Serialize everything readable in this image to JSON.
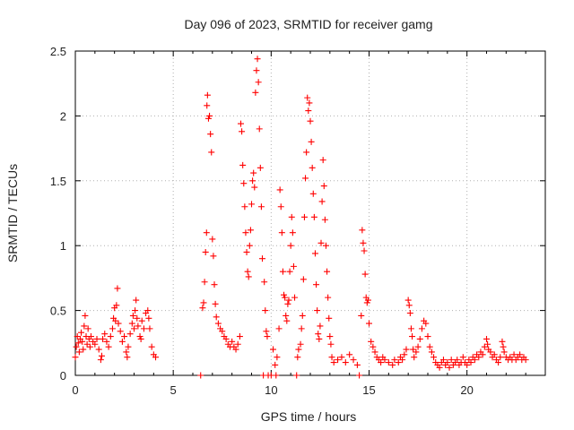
{
  "chart_data": {
    "type": "scatter",
    "title": "Day 096 of 2023, SRMTID for receiver gamg",
    "xlabel": "GPS time / hours",
    "ylabel": "SRMTID / TECUs",
    "xlim": [
      0,
      24
    ],
    "ylim": [
      0,
      2.5
    ],
    "xticks": [
      0,
      5,
      10,
      15,
      20
    ],
    "xtick_labels": [
      "0",
      "5",
      "10",
      "15",
      "20"
    ],
    "yticks": [
      0,
      0.5,
      1,
      1.5,
      2,
      2.5
    ],
    "ytick_labels": [
      "0",
      "0.5",
      "1",
      "1.5",
      "2",
      "2.5"
    ],
    "grid": true,
    "marker": "plus",
    "color": "#ff0000",
    "series": [
      {
        "name": "SRMTID",
        "points": [
          [
            0.0,
            0.14
          ],
          [
            0.05,
            0.22
          ],
          [
            0.1,
            0.3
          ],
          [
            0.15,
            0.25
          ],
          [
            0.2,
            0.18
          ],
          [
            0.25,
            0.28
          ],
          [
            0.3,
            0.33
          ],
          [
            0.35,
            0.26
          ],
          [
            0.4,
            0.2
          ],
          [
            0.45,
            0.38
          ],
          [
            0.5,
            0.46
          ],
          [
            0.55,
            0.3
          ],
          [
            0.6,
            0.24
          ],
          [
            0.65,
            0.36
          ],
          [
            0.7,
            0.28
          ],
          [
            0.75,
            0.22
          ],
          [
            0.8,
            0.3
          ],
          [
            0.9,
            0.26
          ],
          [
            1.0,
            0.24
          ],
          [
            1.1,
            0.28
          ],
          [
            1.2,
            0.2
          ],
          [
            1.3,
            0.12
          ],
          [
            1.35,
            0.15
          ],
          [
            1.4,
            0.28
          ],
          [
            1.5,
            0.32
          ],
          [
            1.6,
            0.26
          ],
          [
            1.7,
            0.22
          ],
          [
            1.8,
            0.3
          ],
          [
            1.9,
            0.36
          ],
          [
            1.95,
            0.44
          ],
          [
            2.0,
            0.52
          ],
          [
            2.05,
            0.42
          ],
          [
            2.1,
            0.54
          ],
          [
            2.15,
            0.67
          ],
          [
            2.2,
            0.4
          ],
          [
            2.3,
            0.34
          ],
          [
            2.4,
            0.26
          ],
          [
            2.5,
            0.3
          ],
          [
            2.6,
            0.18
          ],
          [
            2.65,
            0.14
          ],
          [
            2.7,
            0.22
          ],
          [
            2.8,
            0.32
          ],
          [
            2.9,
            0.4
          ],
          [
            2.95,
            0.46
          ],
          [
            3.0,
            0.36
          ],
          [
            3.05,
            0.5
          ],
          [
            3.1,
            0.58
          ],
          [
            3.15,
            0.44
          ],
          [
            3.2,
            0.38
          ],
          [
            3.3,
            0.3
          ],
          [
            3.35,
            0.28
          ],
          [
            3.4,
            0.42
          ],
          [
            3.5,
            0.36
          ],
          [
            3.6,
            0.48
          ],
          [
            3.7,
            0.5
          ],
          [
            3.75,
            0.44
          ],
          [
            3.8,
            0.36
          ],
          [
            3.9,
            0.22
          ],
          [
            4.0,
            0.16
          ],
          [
            4.1,
            0.14
          ],
          [
            6.4,
            0.0
          ],
          [
            6.5,
            0.52
          ],
          [
            6.55,
            0.56
          ],
          [
            6.6,
            0.72
          ],
          [
            6.65,
            0.95
          ],
          [
            6.7,
            1.1
          ],
          [
            6.72,
            2.08
          ],
          [
            6.75,
            2.16
          ],
          [
            6.8,
            1.98
          ],
          [
            6.85,
            2.0
          ],
          [
            6.9,
            1.86
          ],
          [
            6.95,
            1.72
          ],
          [
            7.0,
            1.05
          ],
          [
            7.05,
            0.92
          ],
          [
            7.1,
            0.7
          ],
          [
            7.15,
            0.55
          ],
          [
            7.2,
            0.45
          ],
          [
            7.3,
            0.4
          ],
          [
            7.4,
            0.36
          ],
          [
            7.5,
            0.34
          ],
          [
            7.6,
            0.3
          ],
          [
            7.7,
            0.28
          ],
          [
            7.8,
            0.24
          ],
          [
            7.9,
            0.22
          ],
          [
            8.0,
            0.26
          ],
          [
            8.1,
            0.22
          ],
          [
            8.2,
            0.2
          ],
          [
            8.3,
            0.24
          ],
          [
            8.4,
            0.3
          ],
          [
            8.45,
            1.94
          ],
          [
            8.5,
            1.88
          ],
          [
            8.55,
            1.62
          ],
          [
            8.6,
            1.48
          ],
          [
            8.65,
            1.3
          ],
          [
            8.7,
            1.1
          ],
          [
            8.75,
            0.95
          ],
          [
            8.8,
            0.8
          ],
          [
            8.85,
            0.76
          ],
          [
            8.9,
            1.0
          ],
          [
            8.95,
            1.12
          ],
          [
            9.0,
            1.32
          ],
          [
            9.05,
            1.5
          ],
          [
            9.1,
            1.56
          ],
          [
            9.15,
            1.45
          ],
          [
            9.2,
            2.18
          ],
          [
            9.25,
            2.35
          ],
          [
            9.3,
            2.44
          ],
          [
            9.35,
            2.26
          ],
          [
            9.4,
            1.9
          ],
          [
            9.45,
            1.6
          ],
          [
            9.5,
            1.3
          ],
          [
            9.55,
            0.9
          ],
          [
            9.6,
            0.0
          ],
          [
            9.65,
            0.72
          ],
          [
            9.7,
            0.5
          ],
          [
            9.75,
            0.34
          ],
          [
            9.8,
            0.3
          ],
          [
            9.85,
            0.0
          ],
          [
            10.0,
            0.0
          ],
          [
            10.1,
            0.2
          ],
          [
            10.2,
            0.08
          ],
          [
            10.25,
            0.0
          ],
          [
            10.3,
            0.14
          ],
          [
            10.4,
            0.36
          ],
          [
            10.45,
            1.43
          ],
          [
            10.5,
            1.3
          ],
          [
            10.55,
            1.1
          ],
          [
            10.6,
            0.8
          ],
          [
            10.65,
            0.62
          ],
          [
            10.7,
            0.6
          ],
          [
            10.75,
            0.46
          ],
          [
            10.8,
            0.42
          ],
          [
            10.85,
            0.55
          ],
          [
            10.9,
            0.58
          ],
          [
            10.95,
            0.8
          ],
          [
            11.0,
            1.0
          ],
          [
            11.05,
            1.22
          ],
          [
            11.1,
            1.1
          ],
          [
            11.15,
            0.84
          ],
          [
            11.2,
            0.6
          ],
          [
            11.3,
            0.0
          ],
          [
            11.35,
            0.14
          ],
          [
            11.4,
            0.2
          ],
          [
            11.5,
            0.24
          ],
          [
            11.55,
            0.36
          ],
          [
            11.6,
            0.46
          ],
          [
            11.65,
            0.74
          ],
          [
            11.7,
            1.22
          ],
          [
            11.75,
            1.52
          ],
          [
            11.8,
            1.72
          ],
          [
            11.85,
            2.14
          ],
          [
            11.9,
            2.04
          ],
          [
            11.95,
            2.1
          ],
          [
            12.0,
            1.96
          ],
          [
            12.05,
            1.8
          ],
          [
            12.1,
            1.6
          ],
          [
            12.15,
            1.4
          ],
          [
            12.2,
            1.22
          ],
          [
            12.25,
            0.94
          ],
          [
            12.3,
            0.7
          ],
          [
            12.35,
            0.5
          ],
          [
            12.4,
            0.32
          ],
          [
            12.45,
            0.28
          ],
          [
            12.5,
            0.38
          ],
          [
            12.55,
            1.02
          ],
          [
            12.6,
            1.34
          ],
          [
            12.65,
            1.66
          ],
          [
            12.7,
            1.46
          ],
          [
            12.75,
            1.2
          ],
          [
            12.8,
            1.0
          ],
          [
            12.85,
            0.8
          ],
          [
            12.9,
            0.6
          ],
          [
            12.95,
            0.44
          ],
          [
            13.0,
            0.3
          ],
          [
            13.05,
            0.24
          ],
          [
            13.1,
            0.14
          ],
          [
            13.2,
            0.1
          ],
          [
            13.4,
            0.12
          ],
          [
            13.6,
            0.14
          ],
          [
            13.8,
            0.1
          ],
          [
            14.0,
            0.16
          ],
          [
            14.2,
            0.12
          ],
          [
            14.4,
            0.08
          ],
          [
            14.5,
            0.0
          ],
          [
            14.6,
            0.46
          ],
          [
            14.65,
            1.12
          ],
          [
            14.7,
            1.02
          ],
          [
            14.75,
            0.96
          ],
          [
            14.8,
            0.78
          ],
          [
            14.85,
            0.6
          ],
          [
            14.9,
            0.56
          ],
          [
            14.95,
            0.58
          ],
          [
            15.0,
            0.4
          ],
          [
            15.1,
            0.26
          ],
          [
            15.2,
            0.22
          ],
          [
            15.3,
            0.18
          ],
          [
            15.4,
            0.14
          ],
          [
            15.5,
            0.12
          ],
          [
            15.6,
            0.1
          ],
          [
            15.7,
            0.14
          ],
          [
            15.8,
            0.12
          ],
          [
            16.0,
            0.1
          ],
          [
            16.2,
            0.08
          ],
          [
            16.3,
            0.12
          ],
          [
            16.5,
            0.1
          ],
          [
            16.6,
            0.14
          ],
          [
            16.7,
            0.12
          ],
          [
            16.8,
            0.16
          ],
          [
            16.9,
            0.2
          ],
          [
            17.0,
            0.58
          ],
          [
            17.05,
            0.54
          ],
          [
            17.1,
            0.48
          ],
          [
            17.15,
            0.36
          ],
          [
            17.2,
            0.3
          ],
          [
            17.25,
            0.2
          ],
          [
            17.3,
            0.14
          ],
          [
            17.4,
            0.18
          ],
          [
            17.5,
            0.22
          ],
          [
            17.6,
            0.28
          ],
          [
            17.7,
            0.36
          ],
          [
            17.8,
            0.42
          ],
          [
            17.9,
            0.4
          ],
          [
            18.0,
            0.3
          ],
          [
            18.1,
            0.22
          ],
          [
            18.2,
            0.18
          ],
          [
            18.3,
            0.14
          ],
          [
            18.4,
            0.1
          ],
          [
            18.5,
            0.08
          ],
          [
            18.6,
            0.06
          ],
          [
            18.7,
            0.1
          ],
          [
            18.8,
            0.12
          ],
          [
            18.9,
            0.08
          ],
          [
            19.0,
            0.1
          ],
          [
            19.1,
            0.06
          ],
          [
            19.2,
            0.12
          ],
          [
            19.3,
            0.08
          ],
          [
            19.4,
            0.1
          ],
          [
            19.5,
            0.12
          ],
          [
            19.6,
            0.08
          ],
          [
            19.7,
            0.1
          ],
          [
            19.8,
            0.14
          ],
          [
            19.9,
            0.1
          ],
          [
            20.0,
            0.08
          ],
          [
            20.1,
            0.12
          ],
          [
            20.2,
            0.1
          ],
          [
            20.3,
            0.14
          ],
          [
            20.4,
            0.12
          ],
          [
            20.5,
            0.16
          ],
          [
            20.6,
            0.14
          ],
          [
            20.7,
            0.18
          ],
          [
            20.8,
            0.16
          ],
          [
            20.9,
            0.22
          ],
          [
            21.0,
            0.28
          ],
          [
            21.05,
            0.24
          ],
          [
            21.1,
            0.2
          ],
          [
            21.2,
            0.18
          ],
          [
            21.3,
            0.14
          ],
          [
            21.4,
            0.16
          ],
          [
            21.5,
            0.12
          ],
          [
            21.6,
            0.1
          ],
          [
            21.7,
            0.14
          ],
          [
            21.8,
            0.26
          ],
          [
            21.85,
            0.22
          ],
          [
            21.9,
            0.18
          ],
          [
            22.0,
            0.14
          ],
          [
            22.1,
            0.12
          ],
          [
            22.2,
            0.14
          ],
          [
            22.3,
            0.12
          ],
          [
            22.4,
            0.16
          ],
          [
            22.5,
            0.12
          ],
          [
            22.6,
            0.14
          ],
          [
            22.7,
            0.16
          ],
          [
            22.8,
            0.12
          ],
          [
            22.9,
            0.14
          ],
          [
            23.0,
            0.12
          ]
        ]
      }
    ]
  }
}
